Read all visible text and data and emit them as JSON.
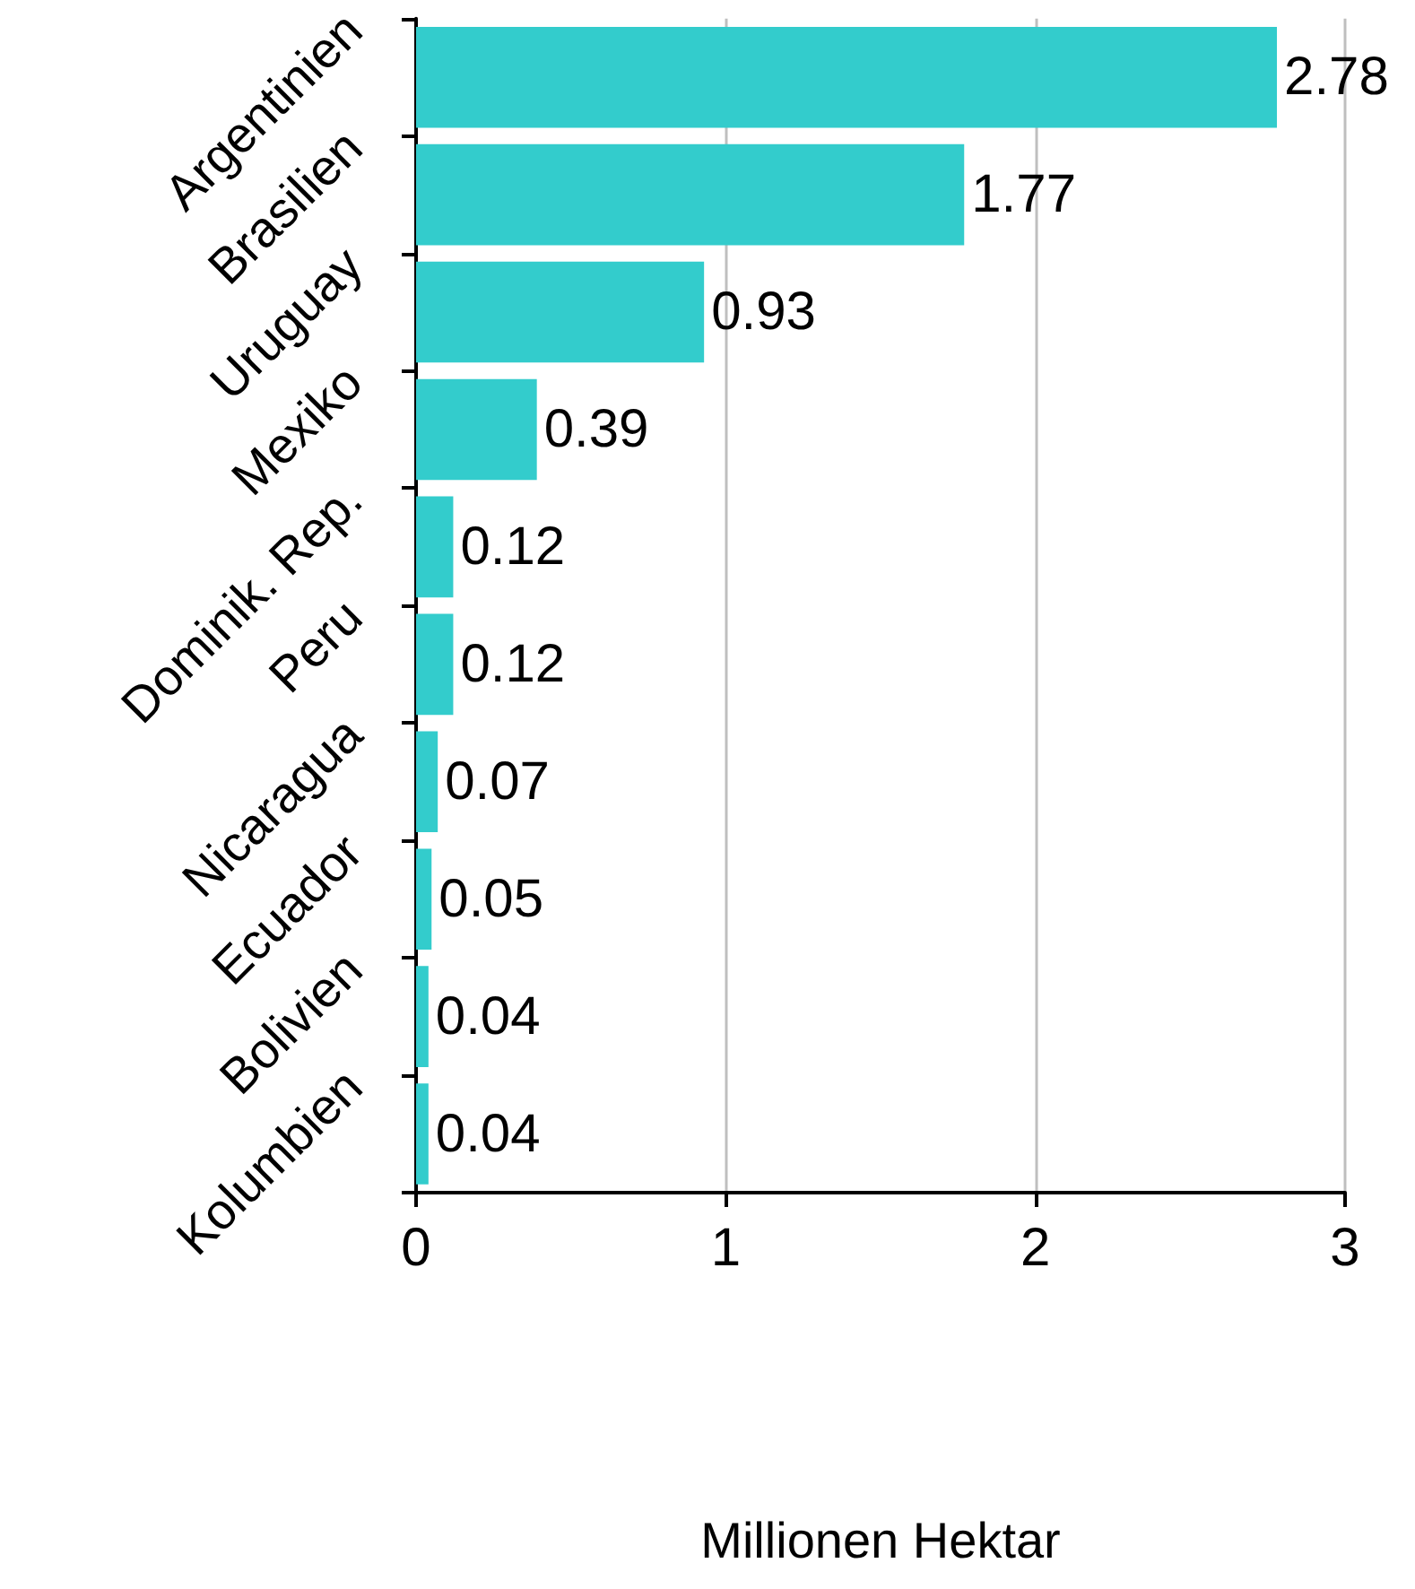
{
  "chart_data": {
    "type": "bar",
    "orientation": "horizontal",
    "xlabel": "Millionen Hektar",
    "categories": [
      "Argentinien",
      "Brasilien",
      "Uruguay",
      "Mexiko",
      "Dominik. Rep.",
      "Peru",
      "Nicaragua",
      "Ecuador",
      "Bolivien",
      "Kolumbien"
    ],
    "values": [
      2.78,
      1.77,
      0.93,
      0.39,
      0.12,
      0.12,
      0.07,
      0.05,
      0.04,
      0.04
    ],
    "color": "#33cccc",
    "xlim": [
      0,
      3
    ],
    "xticks": [
      0,
      1,
      2,
      3
    ],
    "grid": "x",
    "data_labels": true
  }
}
